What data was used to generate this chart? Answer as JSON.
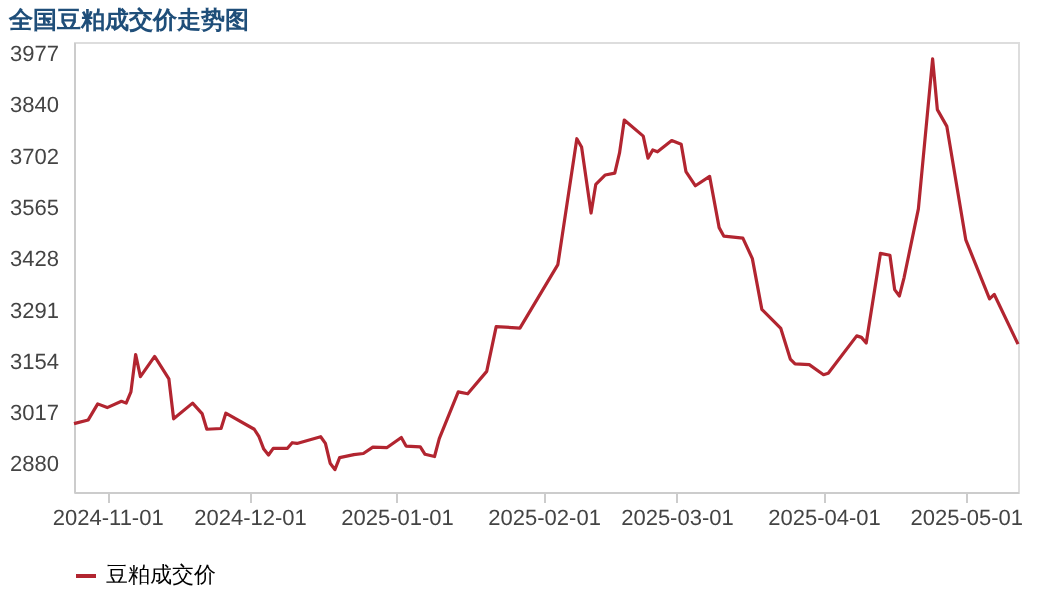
{
  "chart_data": {
    "type": "line",
    "title": "全国豆粕成交价走势图",
    "x": [
      "2024-10-25",
      "2024-10-28",
      "2024-10-30",
      "2024-11-01",
      "2024-11-04",
      "2024-11-05",
      "2024-11-06",
      "2024-11-07",
      "2024-11-08",
      "2024-11-11",
      "2024-11-14",
      "2024-11-15",
      "2024-11-19",
      "2024-11-21",
      "2024-11-22",
      "2024-11-25",
      "2024-11-26",
      "2024-12-02",
      "2024-12-03",
      "2024-12-04",
      "2024-12-05",
      "2024-12-06",
      "2024-12-09",
      "2024-12-10",
      "2024-12-11",
      "2024-12-16",
      "2024-12-17",
      "2024-12-18",
      "2024-12-19",
      "2024-12-20",
      "2024-12-23",
      "2024-12-25",
      "2024-12-27",
      "2024-12-30",
      "2025-01-02",
      "2025-01-03",
      "2025-01-06",
      "2025-01-07",
      "2025-01-09",
      "2025-01-10",
      "2025-01-14",
      "2025-01-16",
      "2025-01-20",
      "2025-01-22",
      "2025-01-27",
      "2025-02-04",
      "2025-02-08",
      "2025-02-09",
      "2025-02-11",
      "2025-02-12",
      "2025-02-14",
      "2025-02-16",
      "2025-02-17",
      "2025-02-18",
      "2025-02-22",
      "2025-02-23",
      "2025-02-24",
      "2025-02-25",
      "2025-02-28",
      "2025-03-02",
      "2025-03-03",
      "2025-03-05",
      "2025-03-08",
      "2025-03-10",
      "2025-03-11",
      "2025-03-15",
      "2025-03-17",
      "2025-03-19",
      "2025-03-23",
      "2025-03-25",
      "2025-03-26",
      "2025-03-29",
      "2025-04-01",
      "2025-04-02",
      "2025-04-08",
      "2025-04-09",
      "2025-04-10",
      "2025-04-13",
      "2025-04-15",
      "2025-04-16",
      "2025-04-17",
      "2025-04-18",
      "2025-04-21",
      "2025-04-24",
      "2025-04-25",
      "2025-04-27",
      "2025-05-01",
      "2025-05-06",
      "2025-05-07",
      "2025-05-12"
    ],
    "series": [
      {
        "name": "豆粕成交价",
        "color": "#b22530",
        "values": [
          2988,
          2998,
          3041,
          3031,
          3048,
          3043,
          3073,
          3173,
          3114,
          3168,
          3108,
          3001,
          3043,
          3015,
          2973,
          2975,
          3016,
          2973,
          2953,
          2920,
          2904,
          2922,
          2922,
          2937,
          2935,
          2953,
          2935,
          2882,
          2865,
          2897,
          2905,
          2908,
          2925,
          2924,
          2951,
          2928,
          2926,
          2906,
          2900,
          2948,
          3073,
          3068,
          3128,
          3248,
          3244,
          3414,
          3751,
          3729,
          3552,
          3629,
          3654,
          3659,
          3713,
          3801,
          3758,
          3699,
          3721,
          3716,
          3746,
          3736,
          3663,
          3625,
          3650,
          3513,
          3490,
          3485,
          3430,
          3294,
          3243,
          3161,
          3148,
          3146,
          3119,
          3123,
          3223,
          3219,
          3204,
          3444,
          3439,
          3347,
          3330,
          3380,
          3563,
          3965,
          3829,
          3784,
          3480,
          3322,
          3334,
          3201
        ]
      }
    ],
    "xlim": [
      "2024-10-25",
      "2025-05-12"
    ],
    "xticks": [
      {
        "value": "2024-11-01",
        "label": "2024-11-01"
      },
      {
        "value": "2024-12-01",
        "label": "2024-12-01"
      },
      {
        "value": "2025-01-01",
        "label": "2025-01-01"
      },
      {
        "value": "2025-02-01",
        "label": "2025-02-01"
      },
      {
        "value": "2025-03-01",
        "label": "2025-03-01"
      },
      {
        "value": "2025-04-01",
        "label": "2025-04-01"
      },
      {
        "value": "2025-05-01",
        "label": "2025-05-01"
      }
    ],
    "ylim": [
      2805,
      4010
    ],
    "yticks": [
      2880,
      3017,
      3154,
      3291,
      3428,
      3565,
      3702,
      3840,
      3977
    ],
    "grid": false,
    "legend": "bottom",
    "marker": "none",
    "line_style": "solid"
  }
}
